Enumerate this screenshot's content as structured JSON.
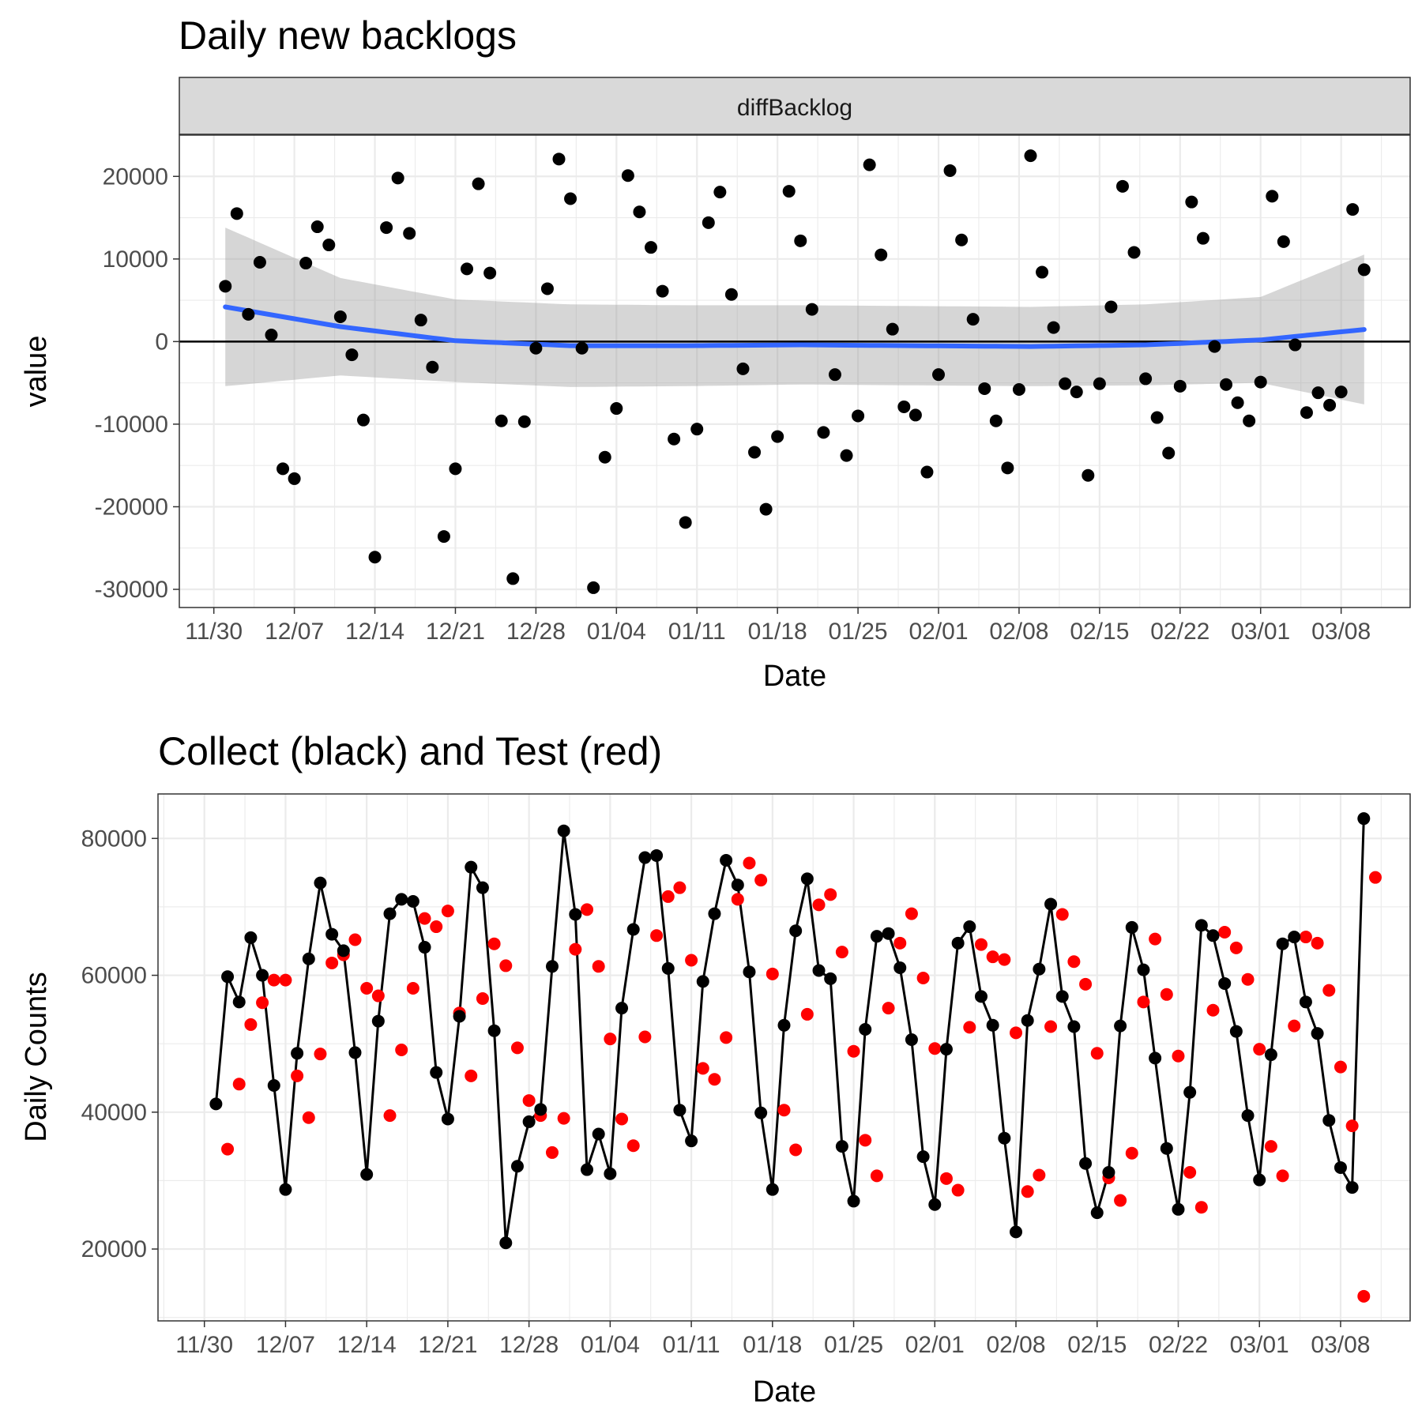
{
  "chart_data": [
    {
      "type": "scatter",
      "title": "Daily new backlogs",
      "facet_label": "diffBacklog",
      "xlabel": "Date",
      "ylabel": "value",
      "x_start": "2020-12-01",
      "xlim": [
        "2020-11-27",
        "2021-03-14"
      ],
      "ylim": [
        -32200,
        25000
      ],
      "x_ticks": [
        "11/30",
        "12/07",
        "12/14",
        "12/21",
        "12/28",
        "01/04",
        "01/11",
        "01/18",
        "01/25",
        "02/01",
        "02/08",
        "02/15",
        "02/22",
        "03/01",
        "03/08"
      ],
      "y_ticks": [
        20000,
        10000,
        0,
        -10000,
        -20000,
        -30000
      ],
      "y_tick_labels": [
        "20000",
        "10000",
        "0",
        "-10000",
        "-20000",
        "-30000"
      ],
      "hline": 0,
      "point_color": "#000000",
      "smooth_color": "#3366FF",
      "band_color": "#999999",
      "grid": true,
      "legend": "none",
      "values": [
        6700,
        15500,
        3300,
        9600,
        800,
        -15400,
        -16600,
        9500,
        13900,
        11700,
        3000,
        -1600,
        -9500,
        -26100,
        13800,
        19800,
        13100,
        2600,
        -3100,
        -23600,
        -15400,
        8800,
        19100,
        8300,
        -9600,
        -28700,
        -9700,
        -800,
        6400,
        22100,
        17300,
        -800,
        -29800,
        -14000,
        -8100,
        20100,
        15700,
        11400,
        6100,
        -11800,
        -21900,
        -10600,
        14400,
        18100,
        5700,
        -3300,
        -13400,
        -20300,
        -11500,
        18200,
        12200,
        3900,
        -11000,
        -4000,
        -13800,
        -9000,
        21400,
        10500,
        1500,
        -7900,
        -8900,
        -15800,
        -4000,
        20700,
        12300,
        2700,
        -5700,
        -9600,
        -15300,
        -5800,
        22500,
        8400,
        1700,
        -5100,
        -6100,
        -16200,
        -5100,
        4200,
        18800,
        10800,
        -4500,
        -9200,
        -13500,
        -5400,
        16900,
        12500,
        -600,
        -5200,
        -7400,
        -9600,
        -4900,
        17600,
        12100,
        -400,
        -8600,
        -6200,
        -7700,
        -6100,
        16000,
        8700
      ],
      "smooth": [
        [
          0,
          4200
        ],
        [
          10,
          1800
        ],
        [
          20,
          100
        ],
        [
          30,
          -500
        ],
        [
          40,
          -500
        ],
        [
          50,
          -400
        ],
        [
          60,
          -500
        ],
        [
          70,
          -600
        ],
        [
          80,
          -400
        ],
        [
          90,
          200
        ],
        [
          100,
          1600
        ]
      ],
      "band_halfwidth": [
        [
          0,
          9600
        ],
        [
          10,
          5900
        ],
        [
          20,
          5000
        ],
        [
          30,
          5000
        ],
        [
          40,
          4900
        ],
        [
          50,
          4800
        ],
        [
          60,
          4800
        ],
        [
          70,
          4800
        ],
        [
          80,
          4900
        ],
        [
          90,
          5200
        ],
        [
          100,
          9500
        ]
      ]
    },
    {
      "type": "line",
      "title": "Collect (black) and Test (red)",
      "xlabel": "Date",
      "ylabel": "Daily Counts",
      "x_start": "2020-12-01",
      "xlim": [
        "2020-11-26",
        "2021-03-14"
      ],
      "ylim": [
        9500,
        86500
      ],
      "x_ticks": [
        "11/30",
        "12/07",
        "12/14",
        "12/21",
        "12/28",
        "01/04",
        "01/11",
        "01/18",
        "01/25",
        "02/01",
        "02/08",
        "02/15",
        "02/22",
        "03/01",
        "03/08"
      ],
      "y_ticks": [
        80000,
        60000,
        40000,
        20000
      ],
      "y_tick_labels": [
        "80000",
        "60000",
        "40000",
        "20000"
      ],
      "grid": true,
      "legend": "none",
      "series": [
        {
          "color": "#000000",
          "line": true,
          "values": [
            41200,
            59800,
            56100,
            65500,
            60000,
            43900,
            28700,
            48600,
            62400,
            73500,
            66000,
            63600,
            48700,
            30900,
            53300,
            69000,
            71100,
            70800,
            64100,
            45800,
            39000,
            54000,
            75800,
            72800,
            51900,
            20900,
            32100,
            38600,
            40400,
            61300,
            81100,
            68900,
            31600,
            36800,
            31000,
            55200,
            66700,
            77200,
            77500,
            61000,
            40300,
            35800,
            59100,
            69000,
            76800,
            73200,
            60500,
            39900,
            28700,
            52700,
            66500,
            74100,
            60700,
            59500,
            35000,
            27000,
            52100,
            65700,
            66100,
            61100,
            50600,
            33500,
            26500,
            49200,
            64700,
            67100,
            56900,
            52700,
            36200,
            22500,
            53400,
            60900,
            70400,
            56900,
            52500,
            32500,
            25300,
            31200,
            52600,
            67000,
            60800,
            47900,
            34700,
            25800,
            42900,
            67300,
            65800,
            58800,
            51800,
            39500,
            30100,
            48400,
            64600,
            65600,
            56100,
            51500,
            38800,
            31900,
            29000,
            82900
          ]
        },
        {
          "color": "#FF0000",
          "line": false,
          "values": [
            34600,
            44100,
            52800,
            56000,
            59300,
            59300,
            45300,
            39200,
            48500,
            61800,
            63000,
            65200,
            58100,
            57000,
            39500,
            49100,
            58100,
            68300,
            67100,
            69400,
            54500,
            45300,
            56600,
            64600,
            61400,
            49400,
            41700,
            39500,
            34100,
            39100,
            63800,
            69600,
            61300,
            50700,
            39000,
            35100,
            51000,
            65800,
            71500,
            72800,
            62200,
            46400,
            44800,
            50900,
            71100,
            76400,
            73900,
            60200,
            40300,
            34500,
            54300,
            70300,
            71800,
            63400,
            48900,
            35900,
            30700,
            55200,
            64700,
            69000,
            59600,
            49300,
            30300,
            28600,
            52400,
            64500,
            62700,
            62300,
            51600,
            28400,
            30800,
            52500,
            68900,
            62000,
            58700,
            48600,
            30400,
            27100,
            34000,
            56100,
            65300,
            57200,
            48200,
            31200,
            26100,
            54900,
            66300,
            64000,
            59400,
            49200,
            35000,
            30700,
            52600,
            65600,
            64700,
            57800,
            46600,
            38000,
            13100,
            74300
          ]
        }
      ]
    }
  ]
}
